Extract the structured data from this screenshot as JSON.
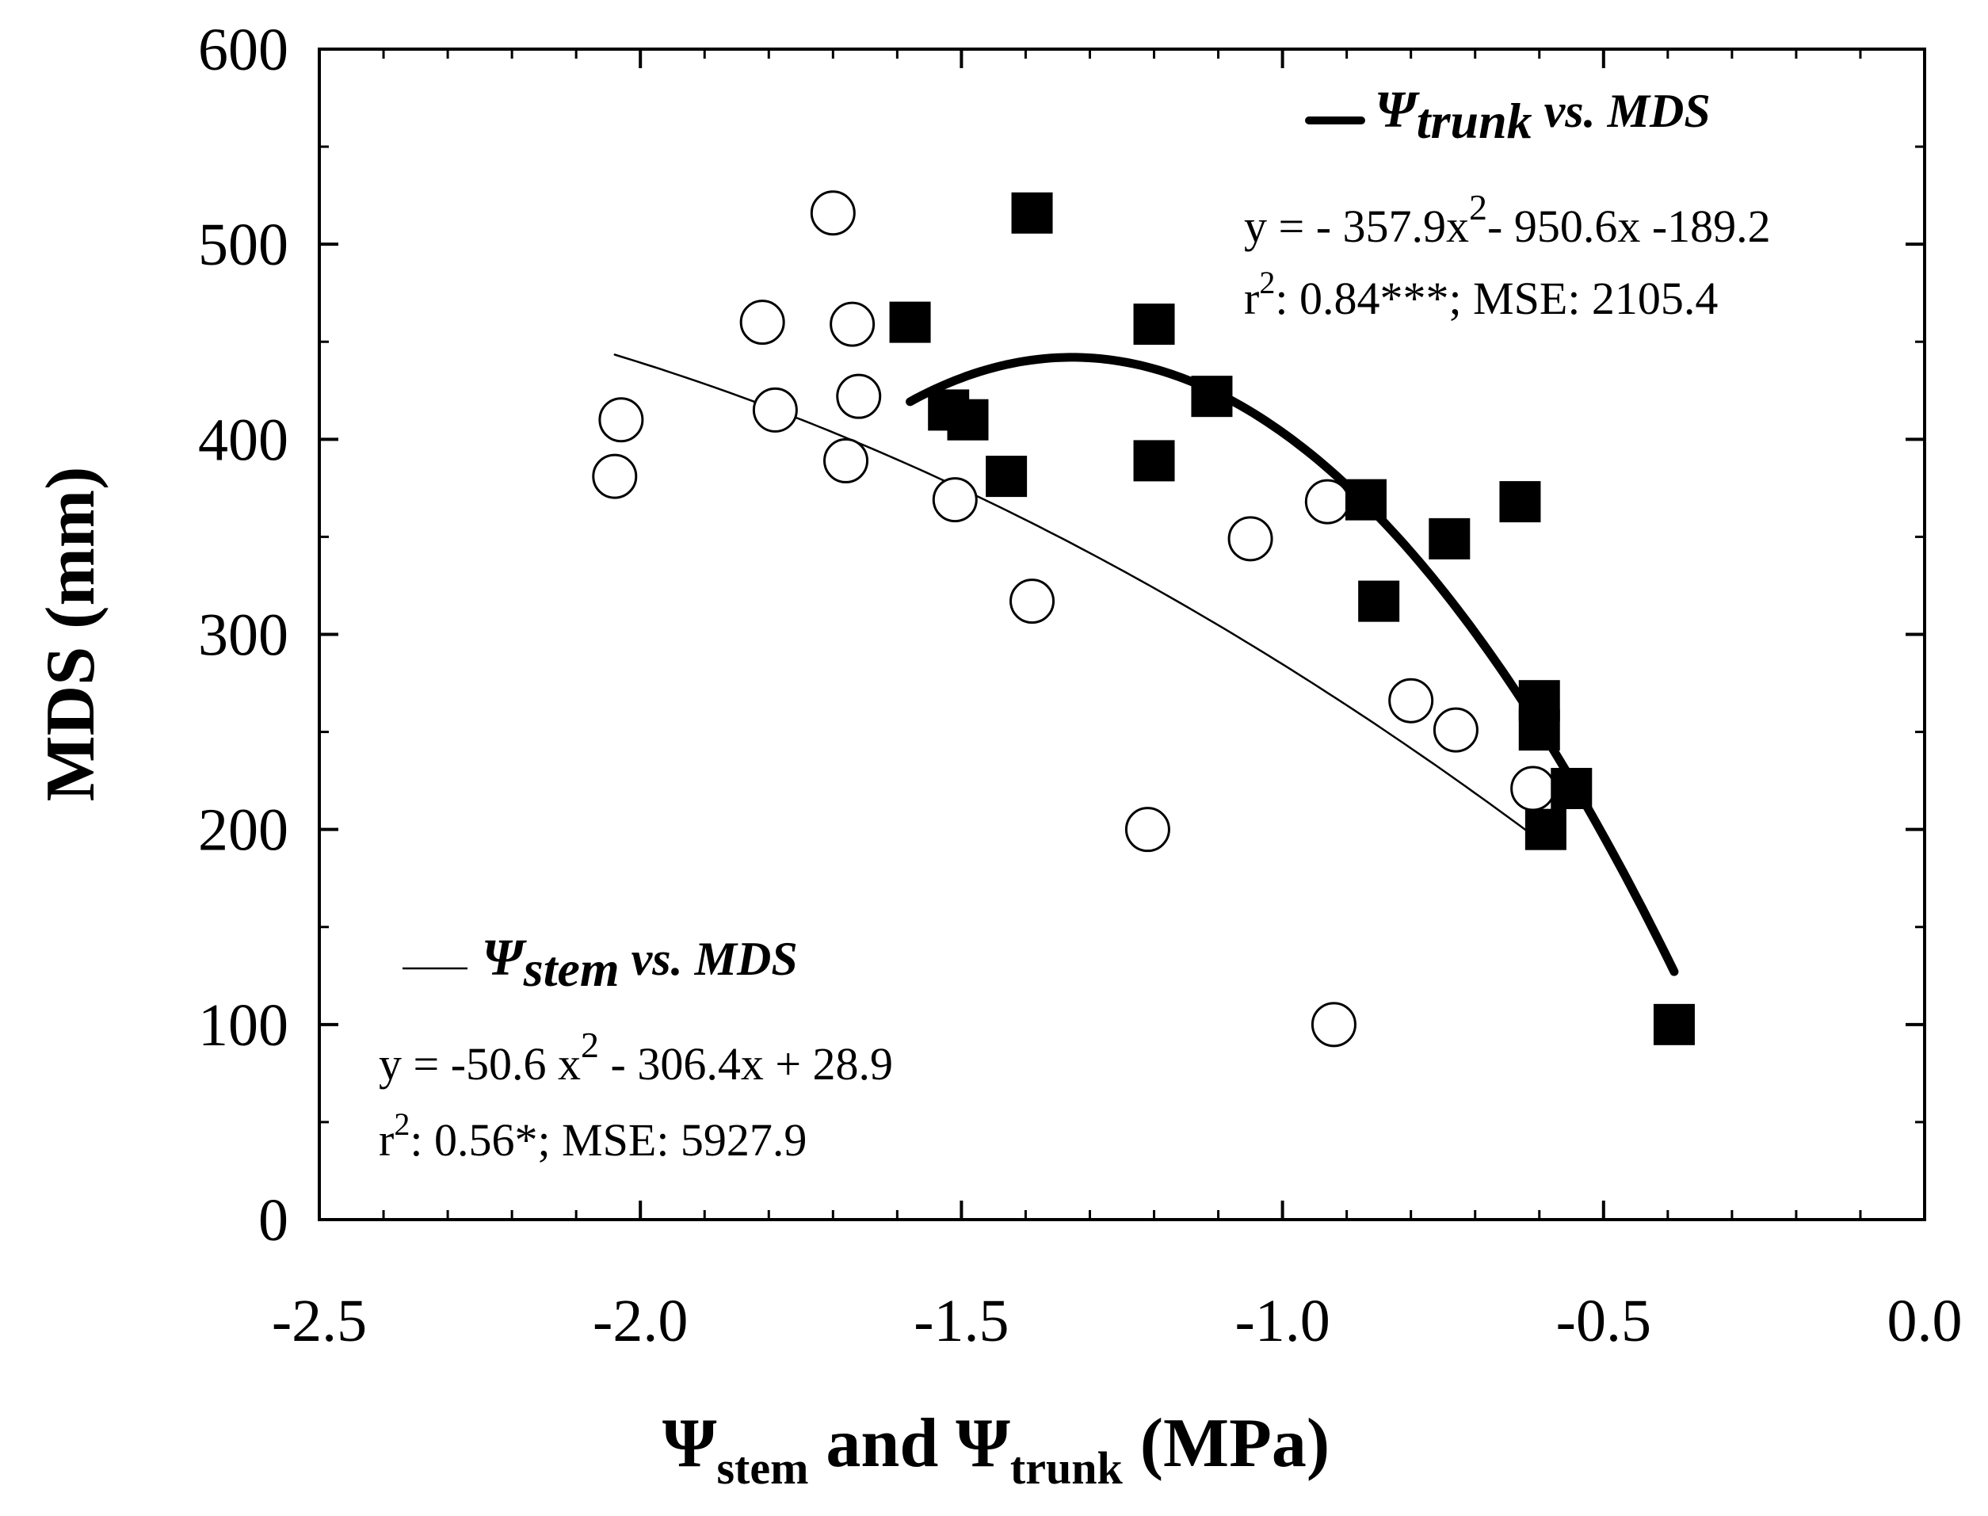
{
  "chart_data": {
    "type": "scatter",
    "title": "",
    "xlabel": {
      "prefix": "Ψ",
      "sub1": "stem",
      "middle": " and Ψ",
      "sub2": "trunk",
      "suffix": " (MPa)"
    },
    "ylabel": "MDS (mm)",
    "xlim": [
      -2.5,
      0.0
    ],
    "ylim": [
      0,
      600
    ],
    "x_ticks": [
      -2.5,
      -2.0,
      -1.5,
      -1.0,
      -0.5,
      0.0
    ],
    "x_tick_labels": [
      "-2.5",
      "-2.0",
      "-1.5",
      "-1.0",
      "-0.5",
      "0.0"
    ],
    "y_ticks": [
      0,
      100,
      200,
      300,
      400,
      500,
      600
    ],
    "y_tick_labels": [
      "0",
      "100",
      "200",
      "300",
      "400",
      "500",
      "600"
    ],
    "x_minor_step": 0.1,
    "y_minor_step": 50,
    "series": [
      {
        "name": "Ψstem",
        "marker": "open-circle",
        "points": [
          [
            -2.04,
            381
          ],
          [
            -2.03,
            410
          ],
          [
            -1.81,
            460
          ],
          [
            -1.79,
            415
          ],
          [
            -1.7,
            516
          ],
          [
            -1.67,
            459
          ],
          [
            -1.66,
            422
          ],
          [
            -1.68,
            389
          ],
          [
            -1.51,
            369
          ],
          [
            -1.39,
            317
          ],
          [
            -1.21,
            200
          ],
          [
            -1.05,
            349
          ],
          [
            -0.93,
            368
          ],
          [
            -0.92,
            100
          ],
          [
            -0.8,
            266
          ],
          [
            -0.73,
            251
          ],
          [
            -0.61,
            221
          ]
        ],
        "fit": {
          "coefficients": [
            -50.6,
            -306.4,
            28.9
          ],
          "x_range": [
            -2.04,
            -0.62
          ],
          "line": "thin"
        }
      },
      {
        "name": "Ψtrunk",
        "marker": "filled-square",
        "points": [
          [
            -1.58,
            460
          ],
          [
            -1.52,
            415
          ],
          [
            -1.49,
            410
          ],
          [
            -1.43,
            381
          ],
          [
            -1.39,
            516
          ],
          [
            -1.2,
            459
          ],
          [
            -1.2,
            389
          ],
          [
            -1.11,
            422
          ],
          [
            -0.87,
            369
          ],
          [
            -0.85,
            317
          ],
          [
            -0.74,
            349
          ],
          [
            -0.63,
            368
          ],
          [
            -0.6,
            266
          ],
          [
            -0.6,
            251
          ],
          [
            -0.55,
            221
          ],
          [
            -0.59,
            200
          ],
          [
            -0.39,
            100
          ]
        ],
        "fit": {
          "coefficients": [
            -357.9,
            -950.6,
            -189.2
          ],
          "x_range": [
            -1.58,
            -0.39
          ],
          "line": "thick"
        }
      }
    ],
    "legend_trunk": {
      "symbol": "Ψ",
      "sub": "trunk",
      "label": " vs. MDS",
      "eq_pre": "y = - 357.9x",
      "eq_sup": "2",
      "eq_post": "- 950.6x -189.2",
      "stat_pre": "r",
      "stat_sup": "2",
      "stat_post": ": 0.84***; MSE: 2105.4"
    },
    "legend_stem": {
      "symbol": "Ψ",
      "sub": "stem",
      "label": " vs. MDS",
      "eq_pre": "y = -50.6 x",
      "eq_sup": "2",
      "eq_post": " - 306.4x + 28.9",
      "stat_pre": "r",
      "stat_sup": "2",
      "stat_post": ": 0.56*;  MSE: 5927.9"
    }
  }
}
